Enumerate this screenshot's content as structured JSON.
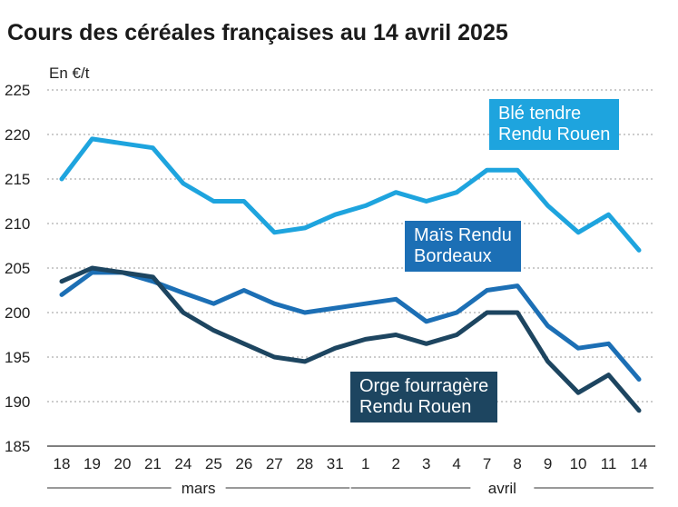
{
  "chart_data": {
    "type": "line",
    "title": "Cours des céréales françaises au 14 avril 2025",
    "ylabel": "En €/t",
    "xlabel": "",
    "ylim": [
      185,
      225
    ],
    "yticks": [
      185,
      190,
      195,
      200,
      205,
      210,
      215,
      220,
      225
    ],
    "grid": true,
    "categories": [
      "18",
      "19",
      "20",
      "21",
      "24",
      "25",
      "26",
      "27",
      "28",
      "31",
      "1",
      "2",
      "3",
      "4",
      "7",
      "8",
      "9",
      "10",
      "11",
      "14"
    ],
    "months": [
      {
        "label": "mars",
        "from": 0,
        "to": 9
      },
      {
        "label": "avril",
        "from": 10,
        "to": 19
      }
    ],
    "series": [
      {
        "name": "Blé tendre Rendu Rouen",
        "color": "#1ea4de",
        "values": [
          215,
          219.5,
          219,
          218.5,
          214.5,
          212.5,
          212.5,
          209,
          209.5,
          211,
          212,
          213.5,
          212.5,
          213.5,
          216,
          216,
          212,
          209,
          211,
          207
        ]
      },
      {
        "name": "Maïs Rendu Bordeaux",
        "color": "#1c6fb5",
        "values": [
          202,
          204.5,
          204.5,
          203.5,
          202.2,
          201,
          202.5,
          201,
          200,
          200.5,
          201,
          201.5,
          199,
          200,
          202.5,
          203,
          198.5,
          196,
          196.5,
          192.5
        ]
      },
      {
        "name": "Orge fourragère Rendu Rouen",
        "color": "#1d4560",
        "values": [
          203.5,
          205,
          204.5,
          204,
          200,
          198,
          196.5,
          195,
          194.5,
          196,
          197,
          197.5,
          196.5,
          197.5,
          200,
          200,
          194.5,
          191,
          193,
          189
        ]
      }
    ]
  },
  "labels": {
    "ble": "Blé tendre\nRendu Rouen",
    "mais": "Maïs Rendu\nBordeaux",
    "orge": "Orge fourragère\nRendu Rouen"
  }
}
